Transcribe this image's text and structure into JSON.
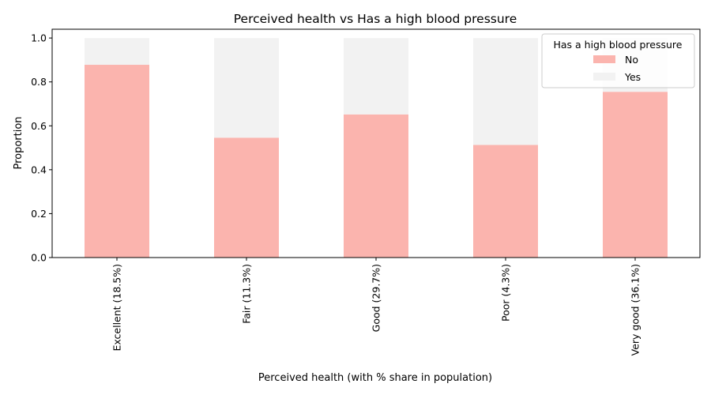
{
  "chart_data": {
    "type": "bar",
    "stacked": true,
    "title": "Perceived health  vs Has a high blood pressure",
    "xlabel": "Perceived health  (with % share in population)",
    "ylabel": "Proportion",
    "categories": [
      "Excellent (18.5%)",
      "Fair (11.3%)",
      "Good (29.7%)",
      "Poor (4.3%)",
      "Very good (36.1%)"
    ],
    "series": [
      {
        "name": "No",
        "color": "#fbb4ae",
        "values": [
          0.878,
          0.546,
          0.652,
          0.513,
          0.755
        ]
      },
      {
        "name": "Yes",
        "color": "#f2f2f2",
        "values": [
          0.122,
          0.454,
          0.348,
          0.487,
          0.245
        ]
      }
    ],
    "ylim": [
      0,
      1.04
    ],
    "yticks": [
      "0.0",
      "0.2",
      "0.4",
      "0.6",
      "0.8",
      "1.0"
    ],
    "legend": {
      "title": "Has a high blood pressure",
      "placement": "top-right"
    },
    "grid": false
  }
}
